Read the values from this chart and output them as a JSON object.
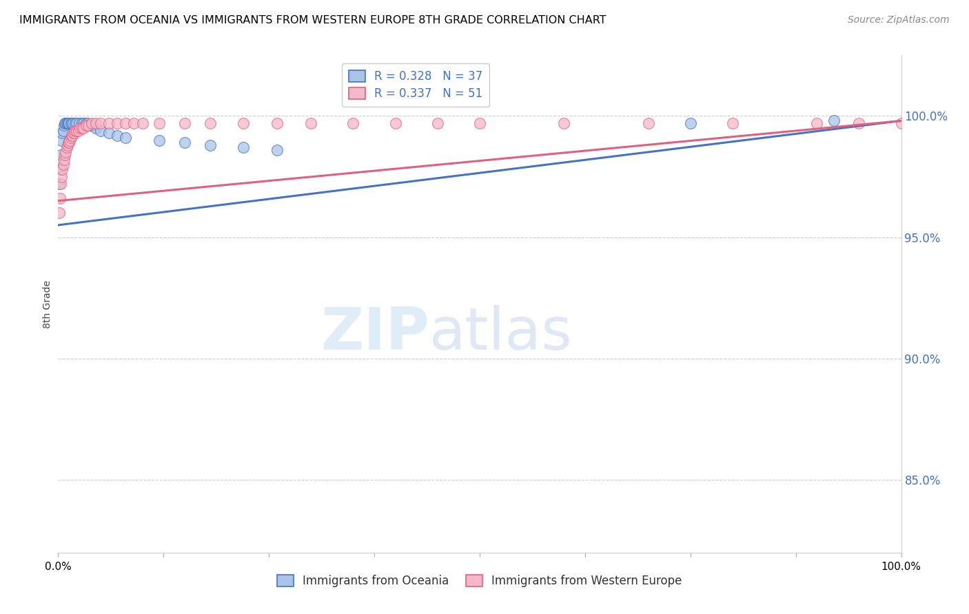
{
  "title": "IMMIGRANTS FROM OCEANIA VS IMMIGRANTS FROM WESTERN EUROPE 8TH GRADE CORRELATION CHART",
  "source": "Source: ZipAtlas.com",
  "ylabel": "8th Grade",
  "ytick_labels": [
    "100.0%",
    "95.0%",
    "90.0%",
    "85.0%"
  ],
  "ytick_values": [
    1.0,
    0.95,
    0.9,
    0.85
  ],
  "xlim": [
    0.0,
    1.0
  ],
  "ylim": [
    0.82,
    1.025
  ],
  "legend1_label": "R = 0.328   N = 37",
  "legend2_label": "R = 0.337   N = 51",
  "color_oceania": "#aac4e8",
  "color_western_europe": "#f5b8c8",
  "line_color_oceania": "#4472c4",
  "line_color_western_europe": "#e06080",
  "legend_label_oceania": "Immigrants from Oceania",
  "legend_label_western_europe": "Immigrants from Western Europe",
  "oceania_x": [
    0.001,
    0.002,
    0.003,
    0.004,
    0.005,
    0.006,
    0.007,
    0.008,
    0.009,
    0.01,
    0.011,
    0.012,
    0.013,
    0.015,
    0.016,
    0.018,
    0.02,
    0.022,
    0.025,
    0.028,
    0.03,
    0.033,
    0.035,
    0.038,
    0.04,
    0.045,
    0.05,
    0.06,
    0.07,
    0.08,
    0.12,
    0.15,
    0.18,
    0.22,
    0.26,
    0.75,
    0.92
  ],
  "oceania_y": [
    0.972,
    0.978,
    0.984,
    0.99,
    0.993,
    0.994,
    0.996,
    0.997,
    0.997,
    0.997,
    0.997,
    0.997,
    0.997,
    0.997,
    0.997,
    0.997,
    0.997,
    0.997,
    0.997,
    0.997,
    0.997,
    0.997,
    0.997,
    0.996,
    0.996,
    0.995,
    0.994,
    0.993,
    0.992,
    0.991,
    0.99,
    0.989,
    0.988,
    0.987,
    0.986,
    0.997,
    0.998
  ],
  "western_europe_x": [
    0.001,
    0.002,
    0.003,
    0.004,
    0.005,
    0.006,
    0.007,
    0.008,
    0.009,
    0.01,
    0.011,
    0.012,
    0.013,
    0.014,
    0.015,
    0.016,
    0.017,
    0.018,
    0.019,
    0.02,
    0.022,
    0.024,
    0.026,
    0.028,
    0.03,
    0.033,
    0.036,
    0.04,
    0.045,
    0.05,
    0.06,
    0.07,
    0.08,
    0.09,
    0.1,
    0.12,
    0.15,
    0.18,
    0.22,
    0.26,
    0.3,
    0.35,
    0.4,
    0.45,
    0.5,
    0.6,
    0.7,
    0.8,
    0.9,
    0.95,
    1.0
  ],
  "western_europe_y": [
    0.96,
    0.966,
    0.972,
    0.975,
    0.978,
    0.98,
    0.982,
    0.984,
    0.985,
    0.987,
    0.988,
    0.989,
    0.989,
    0.99,
    0.991,
    0.992,
    0.992,
    0.993,
    0.993,
    0.994,
    0.994,
    0.994,
    0.995,
    0.995,
    0.995,
    0.996,
    0.996,
    0.997,
    0.997,
    0.997,
    0.997,
    0.997,
    0.997,
    0.997,
    0.997,
    0.997,
    0.997,
    0.997,
    0.997,
    0.997,
    0.997,
    0.997,
    0.997,
    0.997,
    0.997,
    0.997,
    0.997,
    0.997,
    0.997,
    0.997,
    0.997
  ]
}
